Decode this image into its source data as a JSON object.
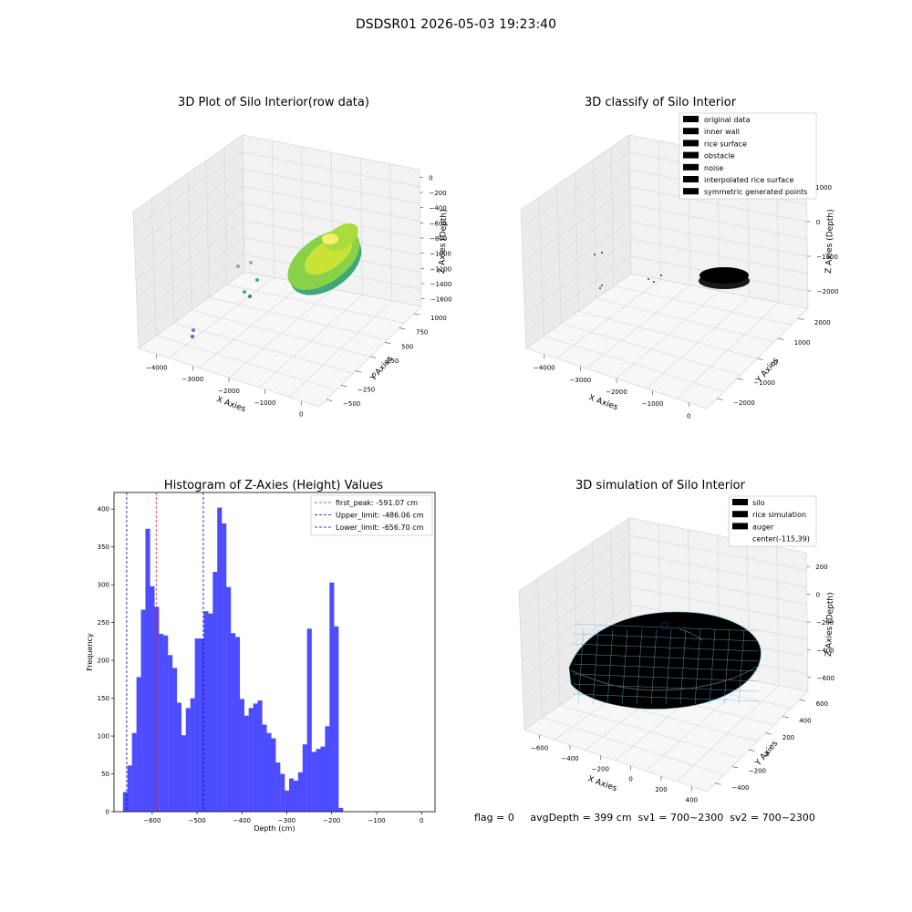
{
  "suptitle": "DSDSR01 2026-05-03 19:23:40",
  "colors": {
    "hist_bar": "#4d4dff",
    "peak_line": "#e41a1c",
    "limit_line": "#0000cc",
    "silo": "#ff69b4",
    "rice_sim": "#87ceeb",
    "auger": "#ff4500",
    "orig": "#b0b0b0",
    "wall": "#808080",
    "rice_surface": "#00ff00",
    "obstacle": "#ff0000",
    "noise": "#0000ff",
    "interp": "#800080",
    "sym": "#ffff00"
  },
  "panel1": {
    "title": "3D Plot of Silo Interior(row data)",
    "xlabel": "X Axies",
    "ylabel": "Y Axies",
    "zlabel": "Z Axies (Depth)",
    "xticks": [
      "−4000",
      "−3000",
      "−2000",
      "−1000",
      "0"
    ],
    "yticks": [
      "−500",
      "−250",
      "0",
      "250",
      "500",
      "750",
      "1000"
    ],
    "zticks": [
      "0",
      "−200",
      "−400",
      "−600",
      "−800",
      "−1000",
      "−1200",
      "−1400",
      "−1600"
    ]
  },
  "panel2": {
    "title": "3D classify of Silo Interior",
    "xlabel": "X Axies",
    "ylabel": "Y Axies",
    "zlabel": "Z Axies (Depth)",
    "xticks": [
      "−4000",
      "−3000",
      "−2000",
      "−1000",
      "0"
    ],
    "yticks": [
      "−2000",
      "−1000",
      "0",
      "1000",
      "2000"
    ],
    "zticks": [
      "1000",
      "0",
      "−1000",
      "−2000"
    ],
    "legend": [
      {
        "label": "original data",
        "color_key": "orig"
      },
      {
        "label": "inner wall",
        "color_key": "wall"
      },
      {
        "label": "rice surface",
        "color_key": "rice_surface"
      },
      {
        "label": "obstacle",
        "color_key": "obstacle"
      },
      {
        "label": "noise",
        "color_key": "noise"
      },
      {
        "label": "interpolated rice surface",
        "color_key": "interp"
      },
      {
        "label": "symmetric generated points",
        "color_key": "sym"
      }
    ]
  },
  "panel4": {
    "title": "3D simulation of Silo Interior",
    "xlabel": "X Axies",
    "ylabel": "Y Axies",
    "zlabel": "Z Axies (Depth)",
    "xticks": [
      "−600",
      "−400",
      "−200",
      "0",
      "200",
      "400"
    ],
    "yticks": [
      "−400",
      "−200",
      "0",
      "200",
      "400",
      "600"
    ],
    "zticks": [
      "200",
      "0",
      "−200",
      "−400",
      "−600"
    ],
    "legend": [
      {
        "label": "silo",
        "color_key": "silo"
      },
      {
        "label": "rice simulation",
        "color_key": "rice_sim"
      },
      {
        "label": "auger",
        "color_key": "auger"
      },
      {
        "label": "center(-115,39)",
        "color_key": ""
      }
    ]
  },
  "status_line": "flag = 0     avgDepth = 399 cm  sv1 = 700~2300  sv2 = 700~2300",
  "chart_data": {
    "type": "bar",
    "title": "Histogram of Z-Axies (Height) Values",
    "xlabel": "Depth (cm)",
    "ylabel": "Frequency",
    "xlim": [
      -685,
      30
    ],
    "ylim": [
      0,
      422
    ],
    "xticks": [
      -600,
      -500,
      -400,
      -300,
      -200,
      -100,
      0
    ],
    "yticks": [
      0,
      50,
      100,
      150,
      200,
      250,
      300,
      350,
      400
    ],
    "bin_start": -665,
    "bin_width": 10,
    "values": [
      26,
      61,
      104,
      178,
      267,
      374,
      298,
      271,
      235,
      233,
      207,
      190,
      144,
      101,
      137,
      150,
      229,
      229,
      265,
      262,
      317,
      402,
      381,
      297,
      236,
      231,
      149,
      127,
      137,
      143,
      147,
      115,
      104,
      97,
      65,
      50,
      28,
      44,
      41,
      52,
      89,
      242,
      79,
      83,
      86,
      113,
      303,
      245,
      5
    ],
    "vlines": [
      {
        "label": "first_peak: -591.07 cm",
        "x": -591.07,
        "color_key": "peak_line"
      },
      {
        "label": "Upper_limit: -486.06 cm",
        "x": -486.06,
        "color_key": "limit_line"
      },
      {
        "label": "Lower_limit: -656.70 cm",
        "x": -656.7,
        "color_key": "limit_line"
      }
    ]
  }
}
